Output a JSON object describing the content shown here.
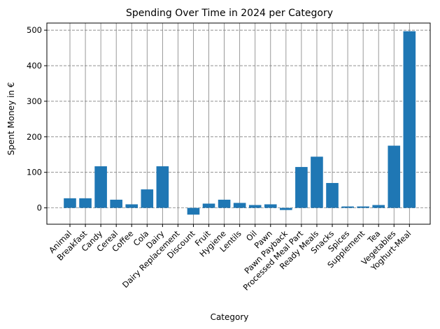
{
  "chart_data": {
    "type": "bar",
    "title": "Spending Over Time in 2024 per Category",
    "xlabel": "Category",
    "ylabel": "Spent Money in €",
    "categories": [
      "Animal",
      "Breakfast",
      "Candy",
      "Cereal",
      "Coffee",
      "Cola",
      "Dairy",
      "Dairy Replacement",
      "Discount",
      "Fruit",
      "Hygiene",
      "Lentils",
      "Oil",
      "Pawn",
      "Pawn Payback",
      "Processed Meal Part",
      "Ready Meals",
      "Snacks",
      "Spices",
      "Supplement",
      "Tea",
      "Vegetables",
      "Yoghurt-Meal"
    ],
    "values": [
      27,
      27,
      117,
      23,
      10,
      52,
      117,
      0,
      -19,
      12,
      23,
      14,
      8,
      10,
      -6,
      115,
      144,
      70,
      4,
      4,
      8,
      175,
      497
    ],
    "ylim": [
      -46,
      520
    ],
    "yticks": [
      0,
      100,
      200,
      300,
      400,
      500
    ],
    "grid": true,
    "bar_color": "#1f77b4",
    "grid_color": "#808080"
  }
}
